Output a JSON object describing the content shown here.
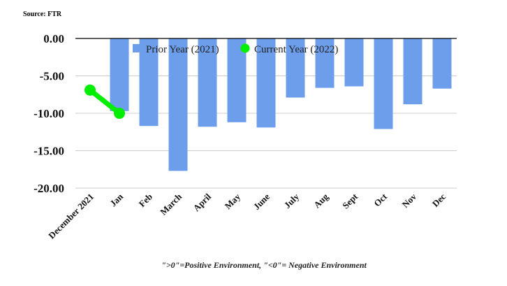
{
  "source": "Source: FTR",
  "footnote": "\">0\"=Positive Environment, \"<0\"= Negative Environment",
  "colors": {
    "bar": "#6d9eeb",
    "line": "#00ee00",
    "grid": "#cccccc",
    "axis": "#000000"
  },
  "chart_data": {
    "type": "bar",
    "categories": [
      "December 2021",
      "Jan",
      "Feb",
      "March",
      "April",
      "May",
      "June",
      "July",
      "Aug",
      "Sept",
      "Oct",
      "Nov",
      "Dec"
    ],
    "series": [
      {
        "name": "Prior Year (2021)",
        "kind": "bar",
        "values": [
          null,
          -9.7,
          -11.7,
          -17.7,
          -11.8,
          -11.2,
          -11.9,
          -7.9,
          -6.6,
          -6.4,
          -12.1,
          -8.8,
          -6.7
        ]
      },
      {
        "name": "Current Year (2022)",
        "kind": "line",
        "values": [
          -6.9,
          -10.0,
          null,
          null,
          null,
          null,
          null,
          null,
          null,
          null,
          null,
          null,
          null
        ]
      }
    ],
    "yticks": [
      "0.00",
      "-5.00",
      "-10.00",
      "-15.00",
      "-20.00"
    ],
    "ylim": [
      -20,
      0
    ],
    "legend": "top-center"
  }
}
